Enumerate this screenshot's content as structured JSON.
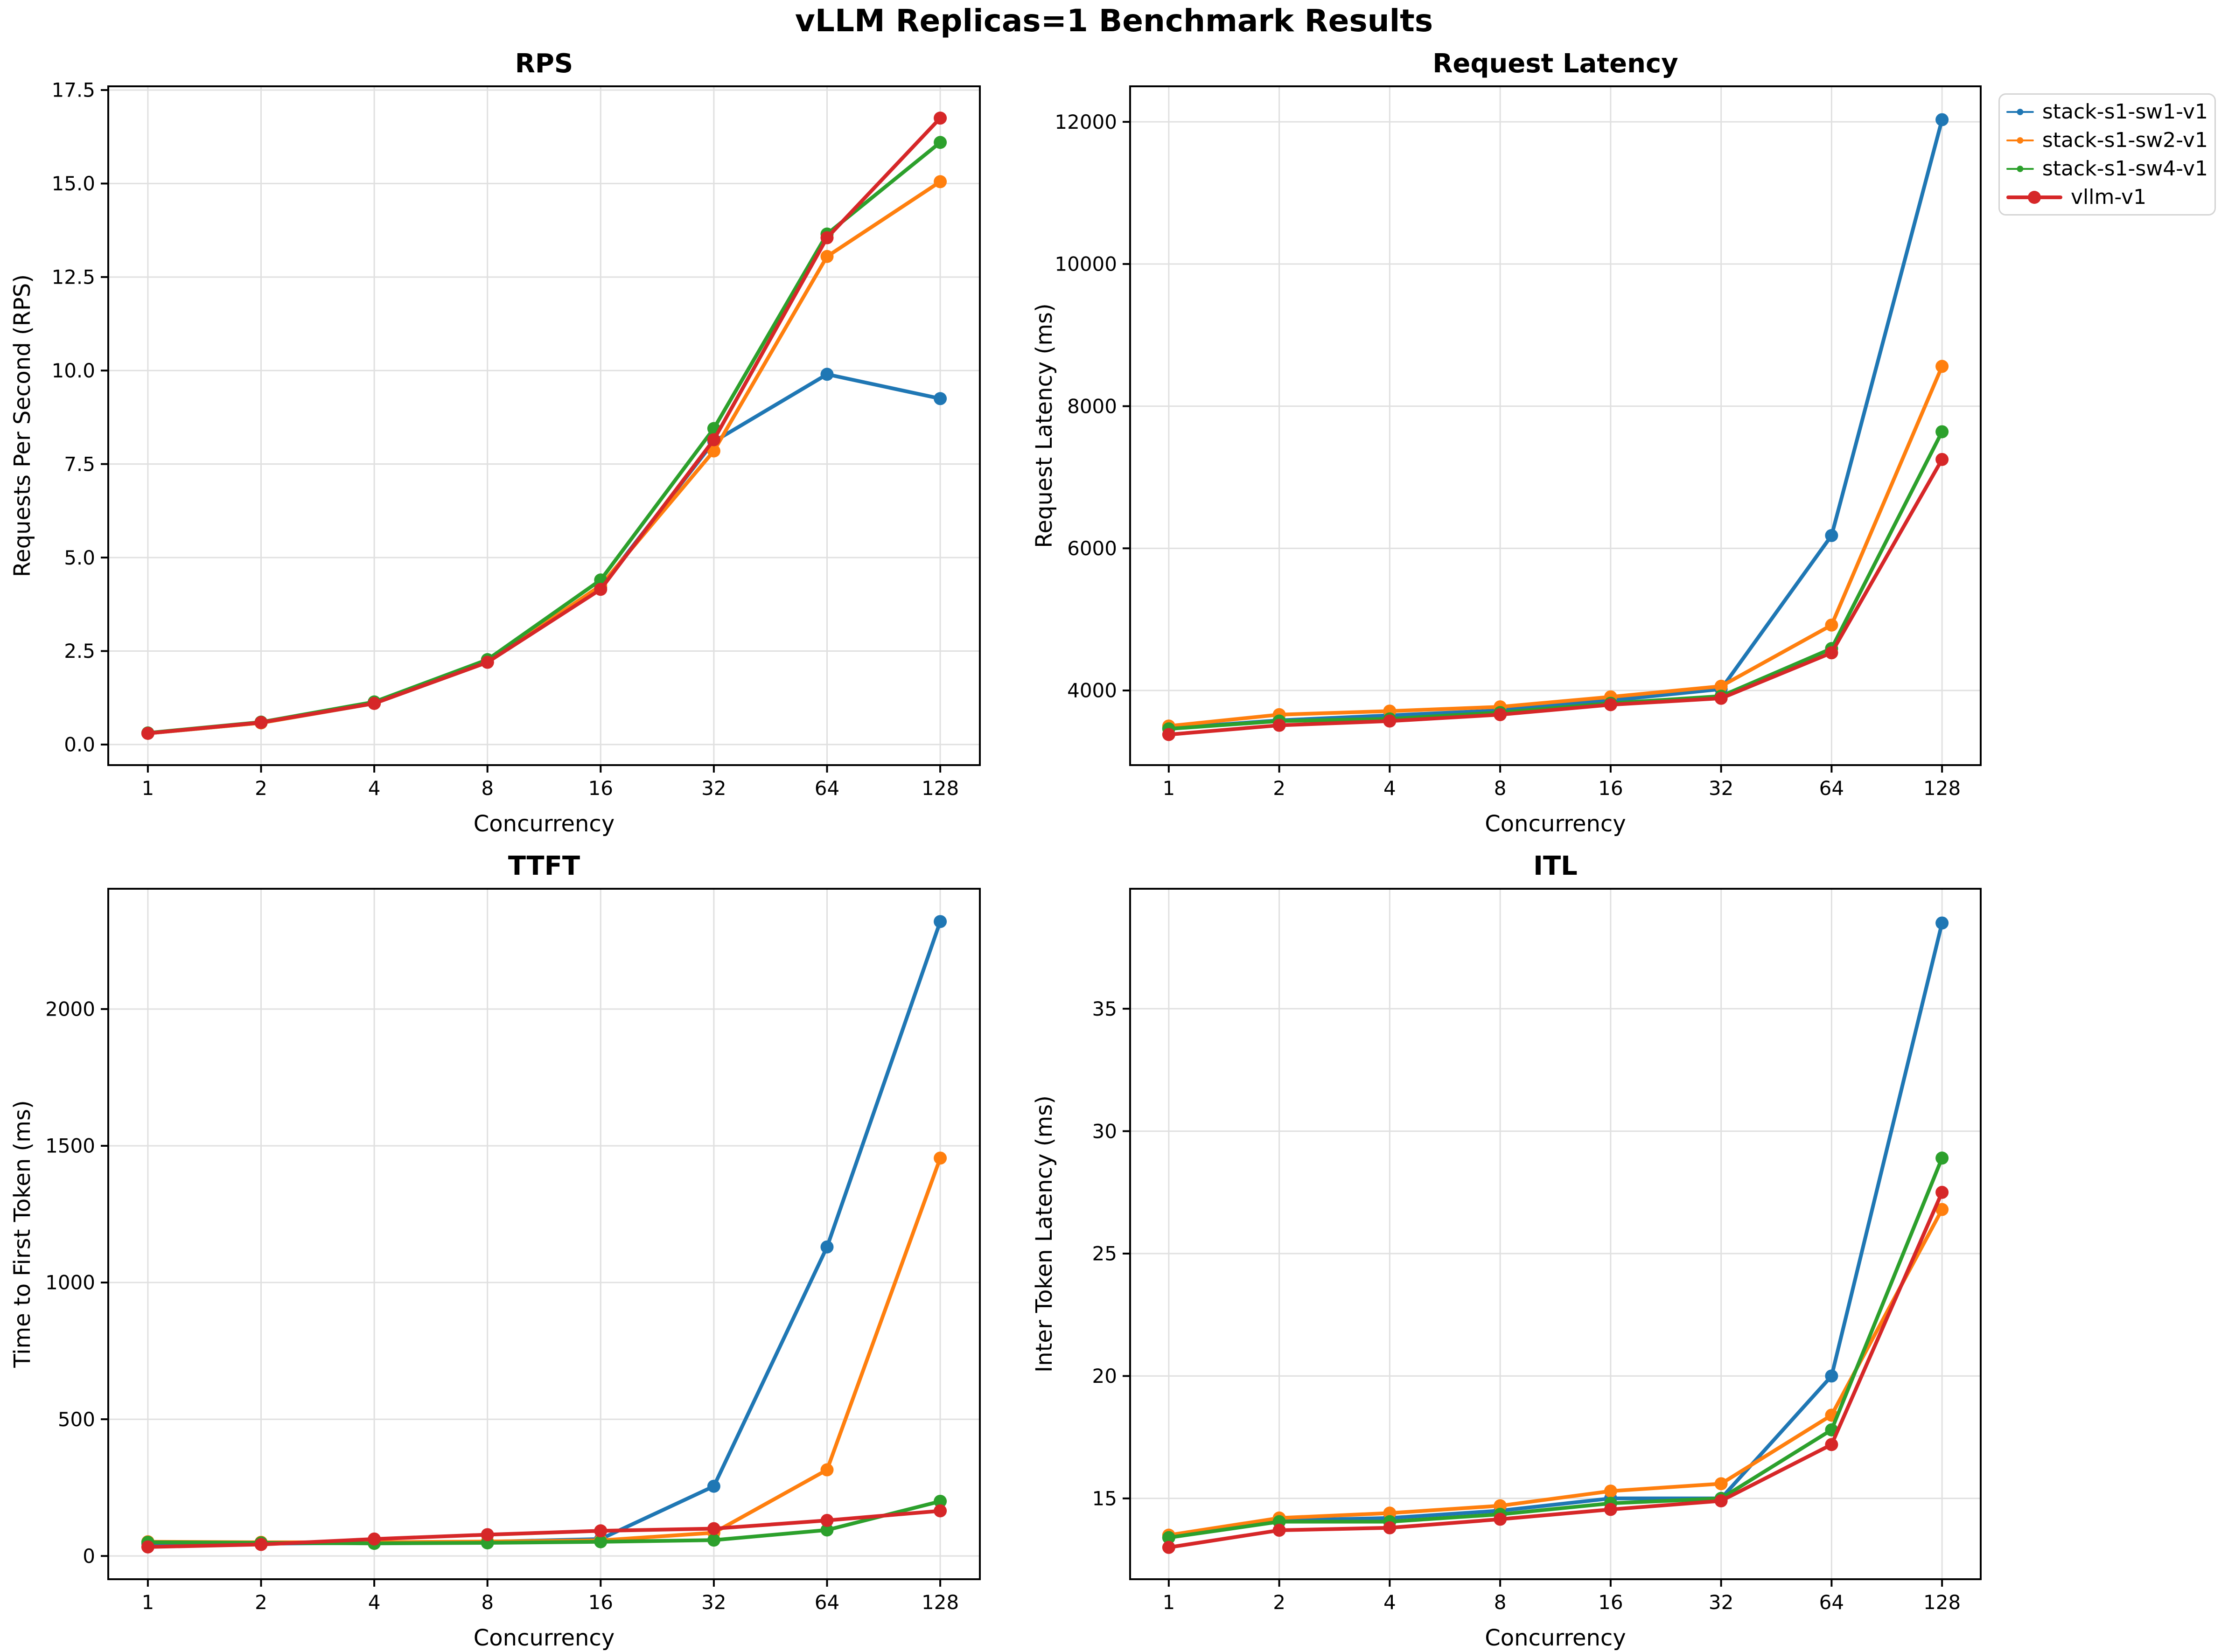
{
  "figure": {
    "suptitle": "vLLM Replicas=1 Benchmark Results",
    "background_color": "#ffffff",
    "grid_color": "#e0e0e0",
    "spine_color": "#000000"
  },
  "legend": {
    "position": "top-right",
    "entries": [
      {
        "label": "stack-s1-sw1-v1",
        "color": "#1f77b4"
      },
      {
        "label": "stack-s1-sw2-v1",
        "color": "#ff7f0e"
      },
      {
        "label": "stack-s1-sw4-v1",
        "color": "#2ca02c"
      },
      {
        "label": "vllm-v1",
        "color": "#d62728"
      }
    ]
  },
  "chart_data": [
    {
      "type": "line",
      "title": "RPS",
      "xlabel": "Concurrency",
      "ylabel": "Requests Per Second (RPS)",
      "x_scale": "log2",
      "grid": true,
      "categories": [
        1,
        2,
        4,
        8,
        16,
        32,
        64,
        128
      ],
      "yticks": [
        0.0,
        2.5,
        5.0,
        7.5,
        10.0,
        12.5,
        15.0,
        17.5
      ],
      "ytick_labels": [
        "0.0",
        "2.5",
        "5.0",
        "7.5",
        "10.0",
        "12.5",
        "15.0",
        "17.5"
      ],
      "ylim": [
        -0.55,
        17.6
      ],
      "series": [
        {
          "name": "stack-s1-sw1-v1",
          "color": "#1f77b4",
          "values": [
            0.3,
            0.58,
            1.1,
            2.2,
            4.2,
            8.1,
            9.9,
            9.25
          ]
        },
        {
          "name": "stack-s1-sw2-v1",
          "color": "#ff7f0e",
          "values": [
            0.3,
            0.58,
            1.1,
            2.2,
            4.25,
            7.85,
            13.05,
            15.05
          ]
        },
        {
          "name": "stack-s1-sw4-v1",
          "color": "#2ca02c",
          "values": [
            0.31,
            0.6,
            1.14,
            2.27,
            4.4,
            8.45,
            13.65,
            16.1
          ]
        },
        {
          "name": "vllm-v1",
          "color": "#d62728",
          "values": [
            0.3,
            0.59,
            1.1,
            2.2,
            4.15,
            8.15,
            13.55,
            16.75
          ]
        }
      ]
    },
    {
      "type": "line",
      "title": "Request Latency",
      "xlabel": "Concurrency",
      "ylabel": "Request Latency (ms)",
      "x_scale": "log2",
      "grid": true,
      "categories": [
        1,
        2,
        4,
        8,
        16,
        32,
        64,
        128
      ],
      "yticks": [
        4000,
        6000,
        8000,
        10000,
        12000
      ],
      "ytick_labels": [
        "4000",
        "6000",
        "8000",
        "10000",
        "12000"
      ],
      "ylim": [
        2950,
        12500
      ],
      "series": [
        {
          "name": "stack-s1-sw1-v1",
          "color": "#1f77b4",
          "values": [
            3470,
            3580,
            3650,
            3720,
            3860,
            4020,
            6180,
            12030
          ]
        },
        {
          "name": "stack-s1-sw2-v1",
          "color": "#ff7f0e",
          "values": [
            3500,
            3660,
            3710,
            3770,
            3910,
            4060,
            4920,
            8560
          ]
        },
        {
          "name": "stack-s1-sw4-v1",
          "color": "#2ca02c",
          "values": [
            3460,
            3570,
            3600,
            3690,
            3820,
            3920,
            4590,
            7640
          ]
        },
        {
          "name": "vllm-v1",
          "color": "#d62728",
          "values": [
            3380,
            3510,
            3570,
            3660,
            3800,
            3890,
            4530,
            7250
          ]
        }
      ]
    },
    {
      "type": "line",
      "title": "TTFT",
      "xlabel": "Concurrency",
      "ylabel": "Time to First Token (ms)",
      "x_scale": "log2",
      "grid": true,
      "categories": [
        1,
        2,
        4,
        8,
        16,
        32,
        64,
        128
      ],
      "yticks": [
        0,
        500,
        1000,
        1500,
        2000
      ],
      "ytick_labels": [
        "0",
        "500",
        "1000",
        "1500",
        "2000"
      ],
      "ylim": [
        -85,
        2440
      ],
      "series": [
        {
          "name": "stack-s1-sw1-v1",
          "color": "#1f77b4",
          "values": [
            45,
            45,
            48,
            52,
            62,
            255,
            1130,
            2320
          ]
        },
        {
          "name": "stack-s1-sw2-v1",
          "color": "#ff7f0e",
          "values": [
            52,
            50,
            50,
            53,
            57,
            85,
            315,
            1455
          ]
        },
        {
          "name": "stack-s1-sw4-v1",
          "color": "#2ca02c",
          "values": [
            50,
            48,
            46,
            48,
            52,
            58,
            95,
            200
          ]
        },
        {
          "name": "vllm-v1",
          "color": "#d62728",
          "values": [
            33,
            42,
            62,
            78,
            92,
            100,
            130,
            165
          ]
        }
      ]
    },
    {
      "type": "line",
      "title": "ITL",
      "xlabel": "Concurrency",
      "ylabel": "Inter Token Latency (ms)",
      "x_scale": "log2",
      "grid": true,
      "categories": [
        1,
        2,
        4,
        8,
        16,
        32,
        64,
        128
      ],
      "yticks": [
        15,
        20,
        25,
        30,
        35
      ],
      "ytick_labels": [
        "15",
        "20",
        "25",
        "30",
        "35"
      ],
      "ylim": [
        11.7,
        39.9
      ],
      "series": [
        {
          "name": "stack-s1-sw1-v1",
          "color": "#1f77b4",
          "values": [
            13.4,
            14.1,
            14.2,
            14.5,
            15.0,
            15.0,
            20.0,
            38.5
          ]
        },
        {
          "name": "stack-s1-sw2-v1",
          "color": "#ff7f0e",
          "values": [
            13.5,
            14.2,
            14.4,
            14.7,
            15.3,
            15.6,
            18.4,
            26.8
          ]
        },
        {
          "name": "stack-s1-sw4-v1",
          "color": "#2ca02c",
          "values": [
            13.4,
            14.05,
            14.05,
            14.35,
            14.8,
            15.0,
            17.8,
            28.9
          ]
        },
        {
          "name": "vllm-v1",
          "color": "#d62728",
          "values": [
            13.0,
            13.7,
            13.8,
            14.15,
            14.55,
            14.9,
            17.2,
            27.5
          ]
        }
      ]
    }
  ]
}
